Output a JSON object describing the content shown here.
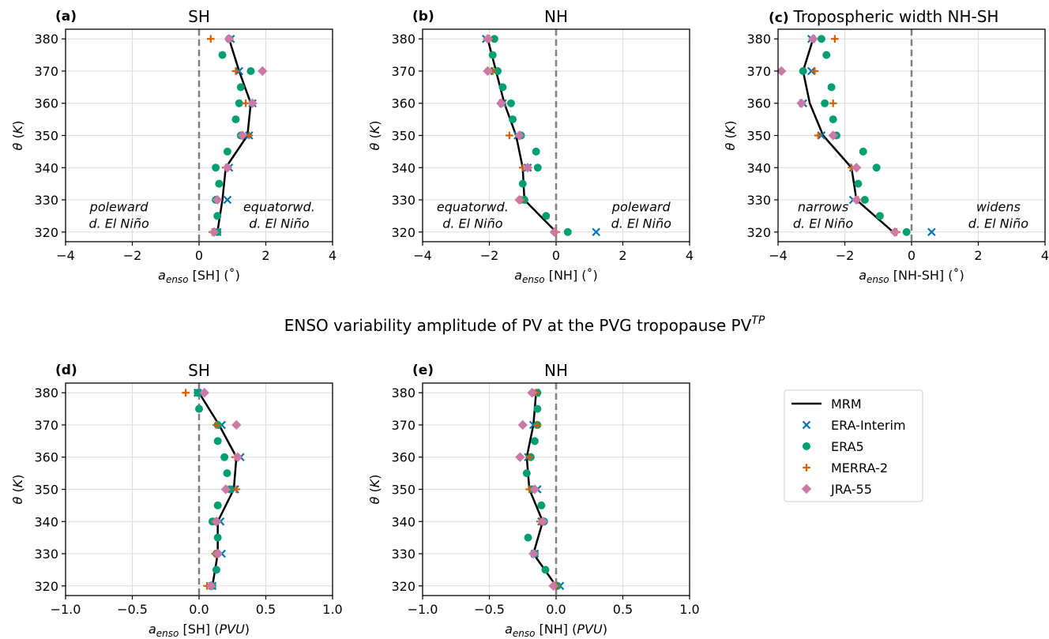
{
  "suptitle": "ENSO variability amplitude of PV at the PVG tropopause PV",
  "suptitle_sup": "TP",
  "colors": {
    "MRM": "#000000",
    "ERA-Interim": "#0072b2",
    "ERA5": "#009e73",
    "MERRA-2": "#d55e00",
    "JRA-55": "#cc79a7"
  },
  "legend": {
    "placement": "right of bottom row",
    "entries": [
      {
        "label": "MRM",
        "marker": "line"
      },
      {
        "label": "ERA-Interim",
        "marker": "x"
      },
      {
        "label": "ERA5",
        "marker": "circle"
      },
      {
        "label": "MERRA-2",
        "marker": "plus"
      },
      {
        "label": "JRA-55",
        "marker": "diamond"
      }
    ]
  },
  "chart_data": [
    {
      "type": "scatter",
      "panel_label": "(a)",
      "title": "SH",
      "xlabel_main": "a",
      "xlabel_sub": "enso",
      "xlabel_rest": " [SH] (˚)",
      "ylabel": "θ (K)",
      "xlim": [
        -4,
        4
      ],
      "ylim": [
        317,
        383
      ],
      "xticks": [
        "−4",
        "−2",
        "0",
        "2",
        "4"
      ],
      "xtick_values": [
        -4,
        -2,
        0,
        2,
        4
      ],
      "yticks": [
        320,
        330,
        340,
        350,
        360,
        370,
        380
      ],
      "grid": true,
      "zero_line": true,
      "annotations": [
        {
          "lines": [
            "poleward",
            "d. El Niño"
          ],
          "x": -2.4,
          "y": 323.5
        },
        {
          "lines": [
            "equatorwd.",
            "d. El Niño"
          ],
          "x": 2.4,
          "y": 323.5
        }
      ],
      "y": [
        320,
        330,
        340,
        350,
        360,
        370,
        380
      ],
      "series": [
        {
          "name": "MRM",
          "kind": "line",
          "x": [
            0.55,
            0.7,
            0.8,
            1.45,
            1.55,
            1.2,
            0.9
          ]
        },
        {
          "name": "ERA-Interim",
          "kind": "x",
          "x": [
            0.55,
            0.85,
            0.9,
            1.5,
            1.6,
            1.2,
            0.95
          ]
        },
        {
          "name": "ERA5",
          "kind": "circle",
          "points": [
            [
              0.55,
              320
            ],
            [
              0.55,
              325
            ],
            [
              0.5,
              330
            ],
            [
              0.6,
              335
            ],
            [
              0.5,
              340
            ],
            [
              0.85,
              345
            ],
            [
              1.25,
              350
            ],
            [
              1.1,
              355
            ],
            [
              1.2,
              360
            ],
            [
              1.25,
              365
            ],
            [
              1.55,
              370
            ],
            [
              0.7,
              375
            ],
            [
              0.9,
              380
            ]
          ]
        },
        {
          "name": "MERRA-2",
          "kind": "plus",
          "x": [
            0.4,
            0.55,
            0.8,
            1.5,
            1.4,
            1.1,
            0.35
          ]
        },
        {
          "name": "JRA-55",
          "kind": "diamond",
          "x": [
            0.45,
            0.55,
            0.85,
            1.3,
            1.6,
            1.9,
            0.9
          ]
        }
      ]
    },
    {
      "type": "scatter",
      "panel_label": "(b)",
      "title": "NH",
      "xlabel_main": "a",
      "xlabel_sub": "enso",
      "xlabel_rest": " [NH] (˚)",
      "ylabel": "θ (K)",
      "xlim": [
        -4,
        4
      ],
      "ylim": [
        317,
        383
      ],
      "xticks": [
        "−4",
        "−2",
        "0",
        "2",
        "4"
      ],
      "xtick_values": [
        -4,
        -2,
        0,
        2,
        4
      ],
      "yticks": [
        320,
        330,
        340,
        350,
        360,
        370,
        380
      ],
      "grid": true,
      "zero_line": true,
      "annotations": [
        {
          "lines": [
            "equatorwd.",
            "d. El Niño"
          ],
          "x": -2.5,
          "y": 323.5
        },
        {
          "lines": [
            "poleward",
            "d. El Niño"
          ],
          "x": 2.55,
          "y": 323.5
        }
      ],
      "y": [
        320,
        330,
        340,
        350,
        360,
        370,
        380
      ],
      "series": [
        {
          "name": "MRM",
          "kind": "line",
          "x": [
            0.0,
            -0.95,
            -1.0,
            -1.2,
            -1.55,
            -1.8,
            -2.05
          ]
        },
        {
          "name": "ERA-Interim",
          "kind": "x",
          "x": [
            1.2,
            -1.0,
            -0.85,
            -1.15,
            -1.6,
            -1.85,
            -2.1
          ]
        },
        {
          "name": "ERA5",
          "kind": "circle",
          "points": [
            [
              0.35,
              320
            ],
            [
              -0.3,
              325
            ],
            [
              -0.95,
              330
            ],
            [
              -1.0,
              335
            ],
            [
              -0.55,
              340
            ],
            [
              -0.6,
              345
            ],
            [
              -1.05,
              350
            ],
            [
              -1.3,
              355
            ],
            [
              -1.35,
              360
            ],
            [
              -1.6,
              365
            ],
            [
              -1.75,
              370
            ],
            [
              -1.9,
              375
            ],
            [
              -1.85,
              380
            ]
          ]
        },
        {
          "name": "MERRA-2",
          "kind": "plus",
          "x": [
            0.0,
            -1.05,
            -1.0,
            -1.4,
            -1.6,
            -1.9,
            -2.0
          ]
        },
        {
          "name": "JRA-55",
          "kind": "diamond",
          "x": [
            -0.05,
            -1.1,
            -0.85,
            -1.1,
            -1.65,
            -2.05,
            -2.05
          ]
        }
      ]
    },
    {
      "type": "scatter",
      "panel_label": "(c)",
      "title": "Tropospheric width NH-SH",
      "xlabel_main": "a",
      "xlabel_sub": "enso",
      "xlabel_rest": " [NH-SH] (˚)",
      "ylabel": "θ (K)",
      "xlim": [
        -4,
        4
      ],
      "ylim": [
        317,
        383
      ],
      "xticks": [
        "−4",
        "−2",
        "0",
        "2",
        "4"
      ],
      "xtick_values": [
        -4,
        -2,
        0,
        2,
        4
      ],
      "yticks": [
        320,
        330,
        340,
        350,
        360,
        370,
        380
      ],
      "grid": true,
      "zero_line": true,
      "annotations": [
        {
          "lines": [
            "narrows",
            "d. El Niño"
          ],
          "x": -2.65,
          "y": 323.5
        },
        {
          "lines": [
            "widens",
            "d. El Niño"
          ],
          "x": 2.6,
          "y": 323.5
        }
      ],
      "y": [
        320,
        330,
        340,
        350,
        360,
        370,
        380
      ],
      "series": [
        {
          "name": "MRM",
          "kind": "line",
          "x": [
            -0.55,
            -1.65,
            -1.8,
            -2.65,
            -3.05,
            -3.25,
            -2.95
          ]
        },
        {
          "name": "ERA-Interim",
          "kind": "x",
          "x": [
            0.6,
            -1.75,
            -1.75,
            -2.7,
            -3.25,
            -3.0,
            -3.0
          ]
        },
        {
          "name": "ERA5",
          "kind": "circle",
          "points": [
            [
              -0.15,
              320
            ],
            [
              -0.95,
              325
            ],
            [
              -1.4,
              330
            ],
            [
              -1.6,
              335
            ],
            [
              -1.05,
              340
            ],
            [
              -1.45,
              345
            ],
            [
              -2.25,
              350
            ],
            [
              -2.35,
              355
            ],
            [
              -2.6,
              360
            ],
            [
              -2.4,
              365
            ],
            [
              -3.25,
              370
            ],
            [
              -2.55,
              375
            ],
            [
              -2.7,
              380
            ]
          ]
        },
        {
          "name": "MERRA-2",
          "kind": "plus",
          "x": [
            -0.45,
            -1.6,
            -1.8,
            -2.8,
            -2.35,
            -2.9,
            -2.3
          ]
        },
        {
          "name": "JRA-55",
          "kind": "diamond",
          "x": [
            -0.5,
            -1.65,
            -1.65,
            -2.35,
            -3.3,
            -3.9,
            -2.95
          ]
        }
      ]
    },
    {
      "type": "scatter",
      "panel_label": "(d)",
      "title": "SH",
      "xlabel_main": "a",
      "xlabel_sub": "enso",
      "xlabel_rest": " [SH] (PVU)",
      "ylabel": "θ (K)",
      "xlim": [
        -1.0,
        1.0
      ],
      "ylim": [
        317,
        383
      ],
      "xticks": [
        "−1.0",
        "−0.5",
        "0.0",
        "0.5",
        "1.0"
      ],
      "xtick_values": [
        -1.0,
        -0.5,
        0.0,
        0.5,
        1.0
      ],
      "yticks": [
        320,
        330,
        340,
        350,
        360,
        370,
        380
      ],
      "grid": true,
      "zero_line": true,
      "annotations": [],
      "y": [
        320,
        330,
        340,
        350,
        360,
        370,
        380
      ],
      "series": [
        {
          "name": "MRM",
          "kind": "line",
          "x": [
            0.1,
            0.14,
            0.14,
            0.26,
            0.28,
            0.15,
            0.0
          ]
        },
        {
          "name": "ERA-Interim",
          "kind": "x",
          "x": [
            0.1,
            0.17,
            0.16,
            0.27,
            0.31,
            0.17,
            -0.01
          ]
        },
        {
          "name": "ERA5",
          "kind": "circle",
          "points": [
            [
              0.1,
              320
            ],
            [
              0.13,
              325
            ],
            [
              0.13,
              330
            ],
            [
              0.14,
              335
            ],
            [
              0.1,
              340
            ],
            [
              0.14,
              345
            ],
            [
              0.23,
              350
            ],
            [
              0.21,
              355
            ],
            [
              0.19,
              360
            ],
            [
              0.14,
              365
            ],
            [
              0.14,
              370
            ],
            [
              0.0,
              375
            ],
            [
              -0.01,
              380
            ]
          ]
        },
        {
          "name": "MERRA-2",
          "kind": "plus",
          "x": [
            0.06,
            0.12,
            0.12,
            0.28,
            0.27,
            0.13,
            -0.1
          ]
        },
        {
          "name": "JRA-55",
          "kind": "diamond",
          "x": [
            0.09,
            0.14,
            0.13,
            0.2,
            0.29,
            0.28,
            0.04
          ]
        }
      ]
    },
    {
      "type": "scatter",
      "panel_label": "(e)",
      "title": "NH",
      "xlabel_main": "a",
      "xlabel_sub": "enso",
      "xlabel_rest": " [NH] (PVU)",
      "ylabel": "θ (K)",
      "xlim": [
        -1.0,
        1.0
      ],
      "ylim": [
        317,
        383
      ],
      "xticks": [
        "−1.0",
        "−0.5",
        "0.0",
        "0.5",
        "1.0"
      ],
      "xtick_values": [
        -1.0,
        -0.5,
        0.0,
        0.5,
        1.0
      ],
      "yticks": [
        320,
        330,
        340,
        350,
        360,
        370,
        380
      ],
      "grid": true,
      "zero_line": true,
      "annotations": [],
      "y": [
        320,
        330,
        340,
        350,
        360,
        370,
        380
      ],
      "series": [
        {
          "name": "MRM",
          "kind": "line",
          "x": [
            0.0,
            -0.17,
            -0.1,
            -0.2,
            -0.22,
            -0.17,
            -0.15
          ]
        },
        {
          "name": "ERA-Interim",
          "kind": "x",
          "x": [
            0.03,
            -0.16,
            -0.11,
            -0.14,
            -0.21,
            -0.17,
            -0.15
          ]
        },
        {
          "name": "ERA5",
          "kind": "circle",
          "points": [
            [
              0.01,
              320
            ],
            [
              -0.08,
              325
            ],
            [
              -0.16,
              330
            ],
            [
              -0.21,
              335
            ],
            [
              -0.09,
              340
            ],
            [
              -0.11,
              345
            ],
            [
              -0.18,
              350
            ],
            [
              -0.22,
              355
            ],
            [
              -0.19,
              360
            ],
            [
              -0.16,
              365
            ],
            [
              -0.14,
              370
            ],
            [
              -0.14,
              375
            ],
            [
              -0.14,
              380
            ]
          ]
        },
        {
          "name": "MERRA-2",
          "kind": "plus",
          "x": [
            0.0,
            -0.17,
            -0.12,
            -0.2,
            -0.2,
            -0.14,
            -0.15
          ]
        },
        {
          "name": "JRA-55",
          "kind": "diamond",
          "x": [
            -0.02,
            -0.17,
            -0.1,
            -0.16,
            -0.27,
            -0.25,
            -0.18
          ]
        }
      ]
    }
  ]
}
